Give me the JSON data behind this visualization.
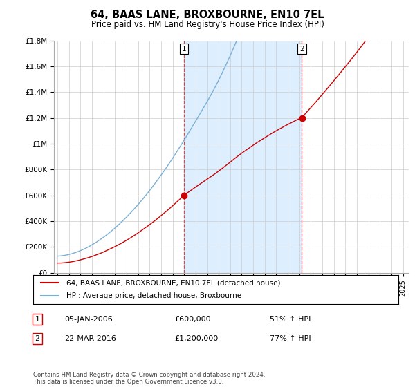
{
  "title": "64, BAAS LANE, BROXBOURNE, EN10 7EL",
  "subtitle": "Price paid vs. HM Land Registry's House Price Index (HPI)",
  "sale1_date": "05-JAN-2006",
  "sale1_price": 600000,
  "sale1_pct": "51%",
  "sale1_year": 2006.0,
  "sale2_date": "22-MAR-2016",
  "sale2_price": 1200000,
  "sale2_pct": "77%",
  "sale2_year": 2016.22,
  "red_line_label": "64, BAAS LANE, BROXBOURNE, EN10 7EL (detached house)",
  "blue_line_label": "HPI: Average price, detached house, Broxbourne",
  "footnote": "Contains HM Land Registry data © Crown copyright and database right 2024.\nThis data is licensed under the Open Government Licence v3.0.",
  "red_color": "#cc0000",
  "blue_color": "#7aafd4",
  "shade_color": "#ddeeff",
  "dashed_color": "#dd4444",
  "bg_color": "#ffffff",
  "grid_color": "#cccccc",
  "ylim_max": 1800000,
  "xmin": 1994.7,
  "xmax": 2025.5
}
